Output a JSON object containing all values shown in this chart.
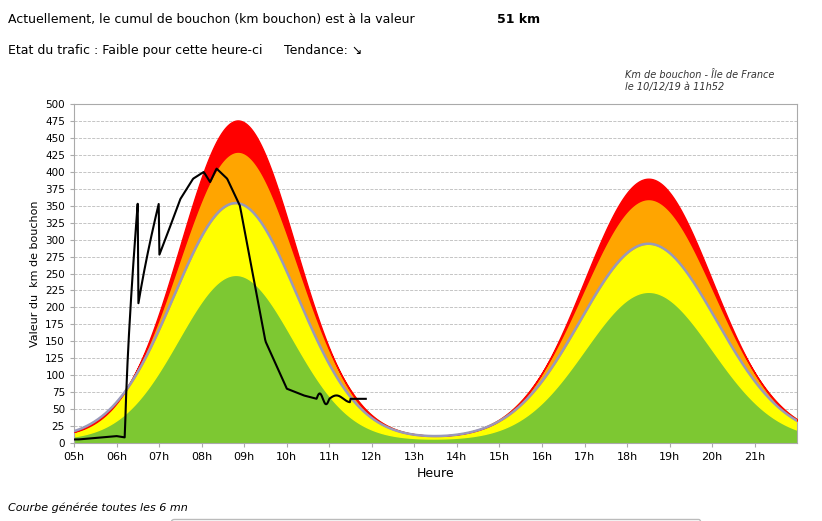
{
  "title_line1": "Actuellement, le cumul de bouchon (km bouchon) est à la valeur ",
  "title_bold": "51 km",
  "title_line2": "Etat du trafic : Faible pour cette heure-ci",
  "title_tendance": "Tendance: ↘",
  "subtitle_right": "Km de bouchon - Íle de France\nle 10/12/19 à 11h52",
  "footer": "Courbe générée toutes les 6 mn",
  "xlabel": "Heure",
  "ylabel": "Valeur du  km de bouchon",
  "yticks": [
    0,
    25,
    50,
    75,
    100,
    125,
    150,
    175,
    200,
    225,
    250,
    275,
    300,
    325,
    350,
    375,
    400,
    425,
    450,
    475,
    500
  ],
  "xtick_labels": [
    "05h",
    "06h",
    "07h",
    "08h",
    "09h",
    "10h",
    "11h",
    "12h",
    "13h",
    "14h",
    "15h",
    "16h",
    "17h",
    "18h",
    "19h",
    "20h",
    "21h"
  ],
  "color_faible": "#7dc832",
  "color_habituel": "#ffff00",
  "color_inhabituel": "#ffa500",
  "color_exceptionnel": "#ff0000",
  "color_moyenne": "#9999bb",
  "color_aujourd_hui": "#000000",
  "background_color": "#ffffff",
  "grid_color": "#bbbbbb"
}
